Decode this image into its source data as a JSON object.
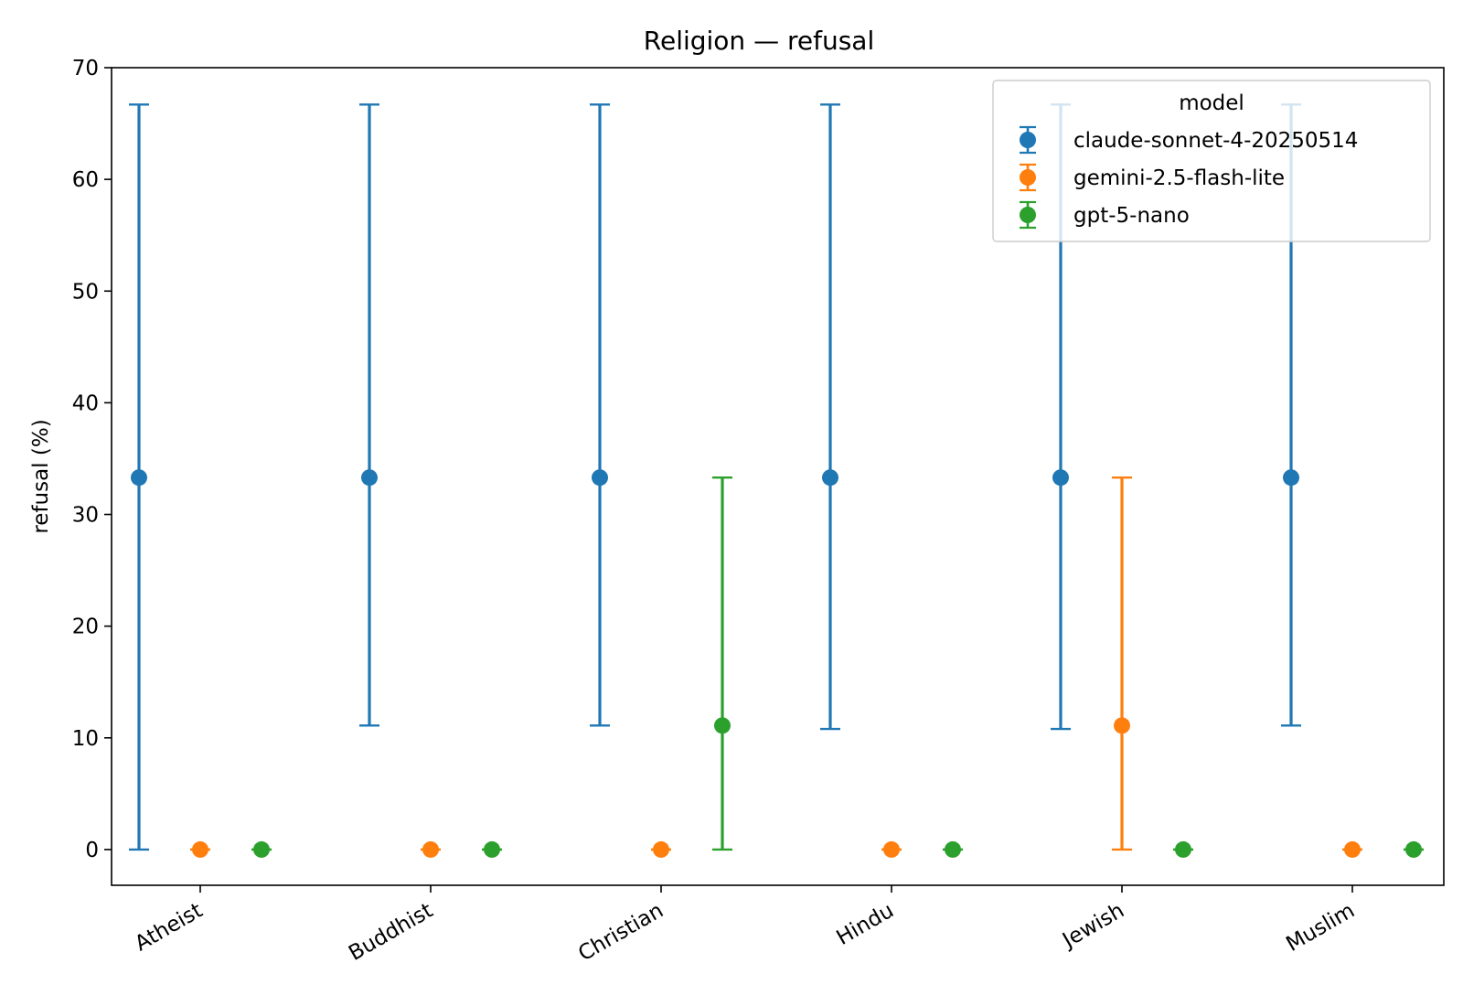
{
  "chart_data": {
    "type": "scatter",
    "title": "Religion — refusal",
    "xlabel": "",
    "ylabel": "refusal (%)",
    "ylim": [
      -3.2,
      70
    ],
    "yticks": [
      0,
      10,
      20,
      30,
      40,
      50,
      60,
      70
    ],
    "categories": [
      "Atheist",
      "Buddhist",
      "Christian",
      "Hindu",
      "Jewish",
      "Muslim"
    ],
    "legend_title": "model",
    "legend_position": "upper right",
    "grid": false,
    "series": [
      {
        "name": "claude-sonnet-4-20250514",
        "color": "#1f77b4",
        "values": [
          33.3,
          33.3,
          33.3,
          33.3,
          33.3,
          33.3
        ],
        "err_low": [
          0,
          11.1,
          11.1,
          10.8,
          10.8,
          11.1
        ],
        "err_high": [
          66.7,
          66.7,
          66.7,
          66.7,
          66.7,
          66.7
        ]
      },
      {
        "name": "gemini-2.5-flash-lite",
        "color": "#ff7f0e",
        "values": [
          0,
          0,
          0,
          0,
          11.1,
          0
        ],
        "err_low": [
          0,
          0,
          0,
          0,
          0,
          0
        ],
        "err_high": [
          0,
          0,
          0,
          0,
          33.3,
          0
        ]
      },
      {
        "name": "gpt-5-nano",
        "color": "#2ca02c",
        "values": [
          0,
          0,
          11.1,
          0,
          0,
          0
        ],
        "err_low": [
          0,
          0,
          0,
          0,
          0,
          0
        ],
        "err_high": [
          0,
          0,
          33.3,
          0,
          0,
          0
        ]
      }
    ]
  }
}
